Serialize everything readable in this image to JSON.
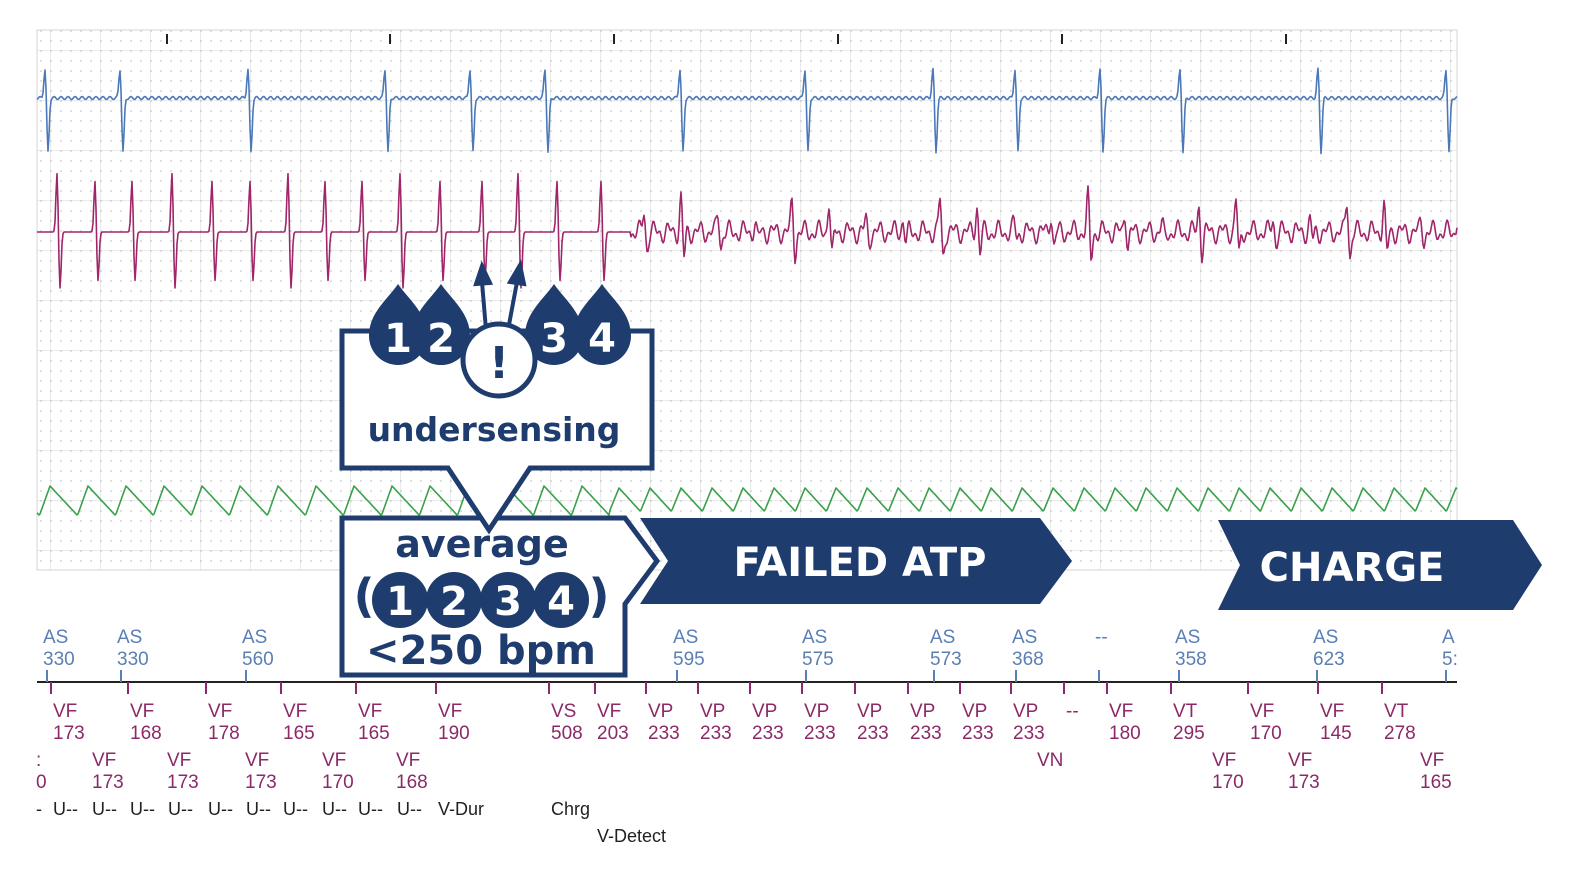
{
  "colors": {
    "accent": "#1f3c6e",
    "channel_top": "#4b79b8",
    "channel_mid": "#a0266a",
    "channel_bottom": "#3aa14a",
    "marker_atrial": "#5a7fb4",
    "marker_ventricular": "#8b2a67",
    "grid": "#d6d6d6"
  },
  "annotations": {
    "sense_numbers": [
      "1",
      "2",
      "3",
      "4"
    ],
    "alert_symbol": "!",
    "undersensing": "undersensing",
    "average": "average",
    "paren_open": "(",
    "paren_close": ")",
    "threshold": "<250 bpm",
    "failed_atp": "FAILED ATP",
    "charge": "CHARGE"
  },
  "atrial_markers": [
    {
      "label": "AS",
      "value": "330"
    },
    {
      "label": "AS",
      "value": "330"
    },
    {
      "label": "AS",
      "value": "560"
    },
    {
      "label": "AS",
      "value": "595"
    },
    {
      "label": "AS",
      "value": "575"
    },
    {
      "label": "AS",
      "value": "573"
    },
    {
      "label": "AS",
      "value": "368"
    },
    {
      "label": "--",
      "value": ""
    },
    {
      "label": "AS",
      "value": "358"
    },
    {
      "label": "AS",
      "value": "623"
    },
    {
      "label": "A",
      "value": "5:"
    }
  ],
  "ventricular_row1": [
    {
      "label": "VF",
      "value": "173"
    },
    {
      "label": "VF",
      "value": "168"
    },
    {
      "label": "VF",
      "value": "178"
    },
    {
      "label": "VF",
      "value": "165"
    },
    {
      "label": "VF",
      "value": "165"
    },
    {
      "label": "VF",
      "value": "190"
    },
    {
      "label": "VS",
      "value": "508"
    },
    {
      "label": "VF",
      "value": "203"
    },
    {
      "label": "VP",
      "value": "233"
    },
    {
      "label": "VP",
      "value": "233"
    },
    {
      "label": "VP",
      "value": "233"
    },
    {
      "label": "VP",
      "value": "233"
    },
    {
      "label": "VP",
      "value": "233"
    },
    {
      "label": "VP",
      "value": "233"
    },
    {
      "label": "VP",
      "value": "233"
    },
    {
      "label": "VP",
      "value": "233"
    },
    {
      "label": "--",
      "value": ""
    },
    {
      "label": "VF",
      "value": "180"
    },
    {
      "label": "VT",
      "value": "295"
    },
    {
      "label": "VF",
      "value": "170"
    },
    {
      "label": "VF",
      "value": "145"
    },
    {
      "label": "VT",
      "value": "278"
    }
  ],
  "ventricular_row2": [
    {
      "label": ":",
      "value": "0"
    },
    {
      "label": "VF",
      "value": "173"
    },
    {
      "label": "VF",
      "value": "173"
    },
    {
      "label": "VF",
      "value": "173"
    },
    {
      "label": "VF",
      "value": "170"
    },
    {
      "label": "VF",
      "value": "168"
    },
    {
      "label": "VN",
      "value": ""
    },
    {
      "label": "VF",
      "value": "170"
    },
    {
      "label": "VF",
      "value": "173"
    },
    {
      "label": "VF",
      "value": "165"
    }
  ],
  "detection_row1": [
    "-",
    "U--",
    "U--",
    "U--",
    "U--",
    "U--",
    "U--",
    "U--",
    "U--",
    "U--",
    "U--",
    "V-Dur",
    "Chrg"
  ],
  "detection_row2": [
    "V-Detect"
  ]
}
